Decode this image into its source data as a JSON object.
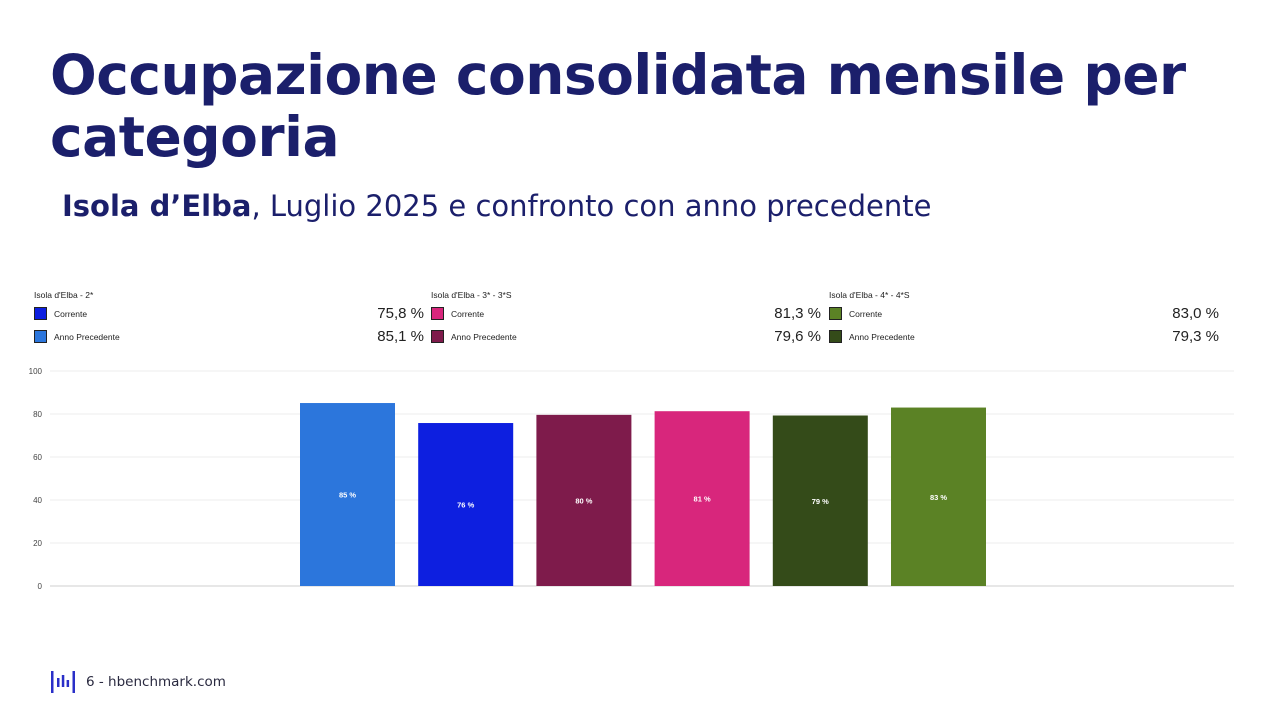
{
  "title": "Occupazione consolidata mensile per categoria",
  "subtitle": {
    "bold": "Isola d’Elba",
    "rest": ", Luglio 2025 e confronto con anno precedente"
  },
  "legends": [
    {
      "title": "Isola d'Elba - 2*",
      "items": [
        {
          "label": "Corrente",
          "value": "75,8 %",
          "color": "#0d1fe0"
        },
        {
          "label": "Anno Precedente",
          "value": "85,1 %",
          "color": "#2c76dc"
        }
      ]
    },
    {
      "title": "Isola d'Elba - 3* - 3*S",
      "items": [
        {
          "label": "Corrente",
          "value": "81,3 %",
          "color": "#d8267c"
        },
        {
          "label": "Anno Precedente",
          "value": "79,6 %",
          "color": "#7e1b4b"
        }
      ]
    },
    {
      "title": "Isola d'Elba - 4* - 4*S",
      "items": [
        {
          "label": "Corrente",
          "value": "83,0 %",
          "color": "#5b8225"
        },
        {
          "label": "Anno Precedente",
          "value": "79,3 %",
          "color": "#344b19"
        }
      ]
    }
  ],
  "chart_data": {
    "type": "bar",
    "title": "",
    "xlabel": "",
    "ylabel": "",
    "ylim": [
      0,
      100
    ],
    "yticks": [
      0,
      20,
      40,
      60,
      80,
      100
    ],
    "grid": true,
    "bars": [
      {
        "series": "Isola d'Elba - 2* Anno Precedente",
        "value": 85.1,
        "label": "85 %",
        "color": "#2c76dc"
      },
      {
        "series": "Isola d'Elba - 2* Corrente",
        "value": 75.8,
        "label": "76 %",
        "color": "#0d1fe0"
      },
      {
        "series": "Isola d'Elba - 3* - 3*S Anno Precedente",
        "value": 79.6,
        "label": "80 %",
        "color": "#7e1b4b"
      },
      {
        "series": "Isola d'Elba - 3* - 3*S Corrente",
        "value": 81.3,
        "label": "81 %",
        "color": "#d8267c"
      },
      {
        "series": "Isola d'Elba - 4* - 4*S Anno Precedente",
        "value": 79.3,
        "label": "79 %",
        "color": "#344b19"
      },
      {
        "series": "Isola d'Elba - 4* - 4*S Corrente",
        "value": 83.0,
        "label": "83 %",
        "color": "#5b8225"
      }
    ]
  },
  "footer": {
    "text": "6 - hbenchmark.com",
    "logo_icon": "hbenchmark-logo-icon",
    "logo_color": "#2a2fc8"
  }
}
